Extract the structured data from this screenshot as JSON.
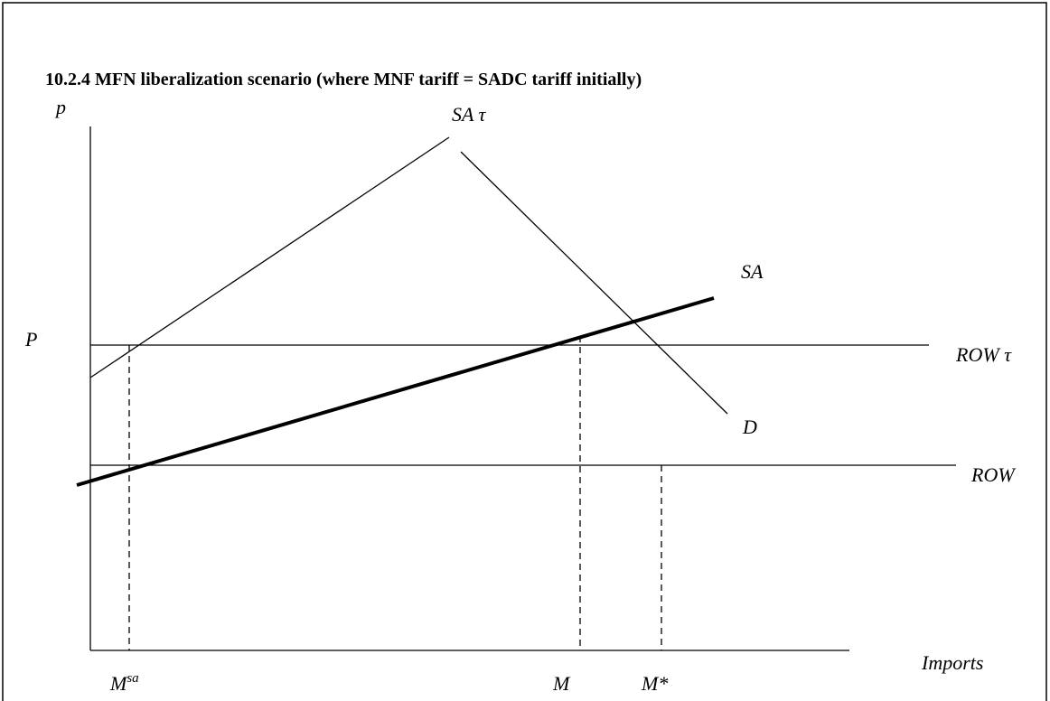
{
  "title": "10.2.4 MFN liberalization scenario (where MNF tariff = SADC tariff initially)",
  "labels": {
    "p_axis": "p",
    "price": "P",
    "sa_tau": "SA τ",
    "sa": "SA",
    "d": "D",
    "row_tau": "ROW τ",
    "row": "ROW",
    "imports": "Imports",
    "m_sa": {
      "base": "M",
      "sup": "sa"
    },
    "m": "M",
    "m_star": "M*"
  }
}
